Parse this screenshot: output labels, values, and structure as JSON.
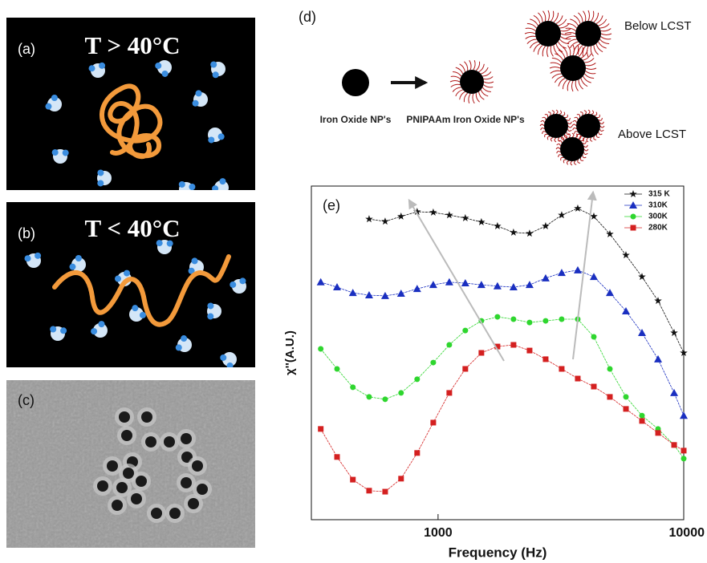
{
  "panels": {
    "a": {
      "label": "(a)",
      "title": "T > 40°C"
    },
    "b": {
      "label": "(b)",
      "title": "T < 40°C"
    },
    "c": {
      "label": "(c)"
    },
    "d": {
      "label": "(d)",
      "left": "Iron Oxide NP's",
      "middle": "PNIPAAm Iron Oxide NP's",
      "top": "Below LCST",
      "bottom": "Above LCST"
    }
  },
  "chart_data": {
    "type": "line",
    "annotation": "(e)",
    "x_label": "Frequency (Hz)",
    "y_label": "χ''(A.U.)",
    "x": [
      333,
      388,
      450,
      524,
      609,
      707,
      822,
      956,
      1111,
      1291,
      1501,
      1745,
      2028,
      2358,
      2741,
      3186,
      3704,
      4306,
      5005,
      5818,
      6763,
      7862,
      9139,
      10000
    ],
    "xlim": [
      305,
      10000
    ],
    "xticks": [
      1000,
      10000
    ],
    "xscale": "log",
    "ylim": [
      0,
      1
    ],
    "legend": "upper right",
    "series": [
      {
        "name": "315 K",
        "color": "#111111",
        "marker": "star",
        "values": [
          null,
          null,
          null,
          0.901,
          0.894,
          0.909,
          0.923,
          0.921,
          0.913,
          0.904,
          0.892,
          0.88,
          0.861,
          0.858,
          0.88,
          0.913,
          0.933,
          0.909,
          0.856,
          0.793,
          0.728,
          0.656,
          0.56,
          0.5
        ]
      },
      {
        "name": "310K",
        "color": "#1a2fc0",
        "marker": "triangle",
        "values": [
          0.712,
          0.697,
          0.68,
          0.673,
          0.671,
          0.678,
          0.692,
          0.704,
          0.712,
          0.709,
          0.704,
          0.7,
          0.697,
          0.704,
          0.724,
          0.74,
          0.748,
          0.728,
          0.68,
          0.625,
          0.56,
          0.481,
          0.38,
          0.312
        ]
      },
      {
        "name": "300K",
        "color": "#2ed62e",
        "marker": "circle",
        "values": [
          0.512,
          0.452,
          0.397,
          0.368,
          0.361,
          0.38,
          0.421,
          0.471,
          0.524,
          0.567,
          0.596,
          0.608,
          0.601,
          0.591,
          0.596,
          0.601,
          0.601,
          0.548,
          0.452,
          0.368,
          0.312,
          0.272,
          0.224,
          0.183
        ]
      },
      {
        "name": "280K",
        "color": "#d42020",
        "marker": "square",
        "values": [
          0.272,
          0.188,
          0.12,
          0.087,
          0.084,
          0.123,
          0.2,
          0.291,
          0.38,
          0.452,
          0.5,
          0.519,
          0.524,
          0.507,
          0.481,
          0.452,
          0.423,
          0.399,
          0.368,
          0.332,
          0.296,
          0.26,
          0.224,
          0.207
        ]
      }
    ]
  }
}
